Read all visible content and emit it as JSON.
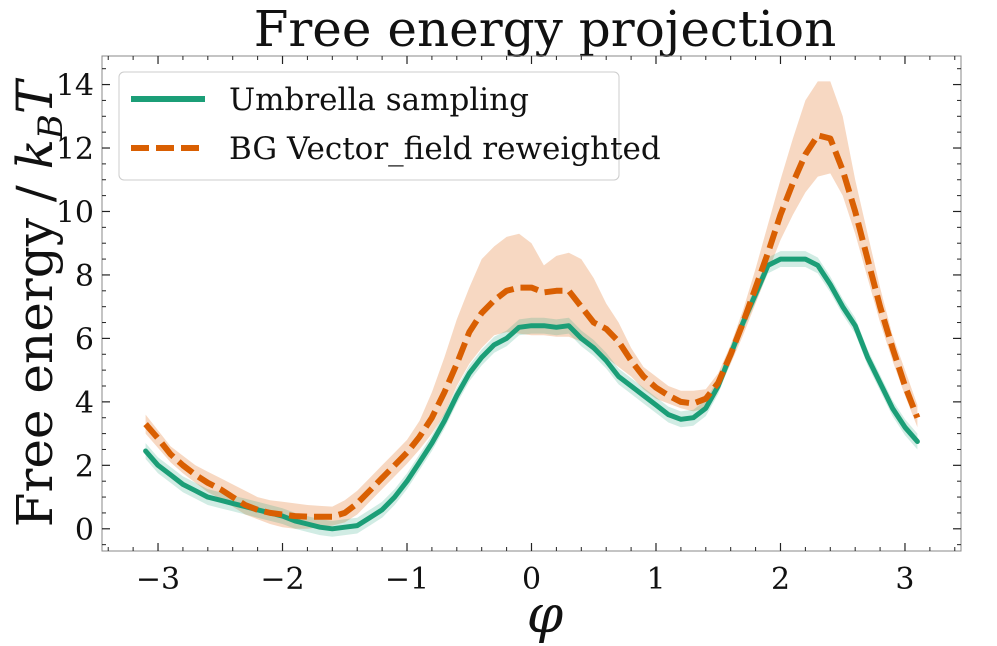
{
  "chart_data": {
    "type": "line",
    "title": "Free energy projection",
    "xlabel": "φ",
    "ylabel": "Free energy / k_B T",
    "ylabel_main": "Free energy / ",
    "ylabel_k": "k",
    "ylabel_sub": "B",
    "ylabel_T": "T",
    "xlim": [
      -3.45,
      3.45
    ],
    "ylim": [
      -0.7,
      14.9
    ],
    "xticks": [
      -3,
      -2,
      -1,
      0,
      1,
      2,
      3
    ],
    "xtick_labels": [
      "−3",
      "−2",
      "−1",
      "0",
      "1",
      "2",
      "3"
    ],
    "yticks": [
      0,
      2,
      4,
      6,
      8,
      10,
      12,
      14
    ],
    "ytick_labels": [
      "0",
      "2",
      "4",
      "6",
      "8",
      "10",
      "12",
      "14"
    ],
    "grid": false,
    "legend_position": "top-left",
    "series": [
      {
        "name": "Umbrella sampling",
        "color": "#1b9e77",
        "style": "solid",
        "x": [
          -3.1,
          -3.0,
          -2.9,
          -2.8,
          -2.7,
          -2.6,
          -2.5,
          -2.4,
          -2.3,
          -2.2,
          -2.1,
          -2.0,
          -1.9,
          -1.8,
          -1.7,
          -1.6,
          -1.5,
          -1.4,
          -1.3,
          -1.2,
          -1.1,
          -1.0,
          -0.9,
          -0.8,
          -0.7,
          -0.6,
          -0.5,
          -0.4,
          -0.3,
          -0.2,
          -0.1,
          0.0,
          0.1,
          0.2,
          0.3,
          0.4,
          0.5,
          0.6,
          0.7,
          0.8,
          0.9,
          1.0,
          1.1,
          1.2,
          1.3,
          1.4,
          1.5,
          1.6,
          1.7,
          1.8,
          1.9,
          2.0,
          2.1,
          2.2,
          2.3,
          2.4,
          2.5,
          2.6,
          2.7,
          2.8,
          2.9,
          3.0,
          3.1
        ],
        "y": [
          2.45,
          2.0,
          1.7,
          1.4,
          1.2,
          1.0,
          0.9,
          0.8,
          0.7,
          0.6,
          0.5,
          0.4,
          0.25,
          0.15,
          0.05,
          0.0,
          0.05,
          0.1,
          0.35,
          0.6,
          1.0,
          1.5,
          2.1,
          2.7,
          3.4,
          4.2,
          4.9,
          5.4,
          5.8,
          6.0,
          6.35,
          6.4,
          6.4,
          6.35,
          6.4,
          6.0,
          5.7,
          5.3,
          4.8,
          4.5,
          4.2,
          3.9,
          3.6,
          3.45,
          3.5,
          3.8,
          4.5,
          5.5,
          6.5,
          7.4,
          8.3,
          8.5,
          8.5,
          8.5,
          8.3,
          7.7,
          7.0,
          6.4,
          5.4,
          4.6,
          3.8,
          3.2,
          2.75
        ],
        "band": 0.25
      },
      {
        "name": "BG Vector_field reweighted",
        "color": "#d95f02",
        "band_color": "#f4cbae",
        "style": "dashed",
        "x": [
          -3.1,
          -3.0,
          -2.9,
          -2.8,
          -2.7,
          -2.6,
          -2.5,
          -2.4,
          -2.3,
          -2.2,
          -2.1,
          -2.0,
          -1.9,
          -1.8,
          -1.7,
          -1.6,
          -1.5,
          -1.4,
          -1.3,
          -1.2,
          -1.1,
          -1.0,
          -0.9,
          -0.8,
          -0.7,
          -0.6,
          -0.5,
          -0.4,
          -0.3,
          -0.2,
          -0.1,
          0.0,
          0.1,
          0.2,
          0.3,
          0.4,
          0.5,
          0.6,
          0.7,
          0.8,
          0.9,
          1.0,
          1.1,
          1.2,
          1.3,
          1.4,
          1.5,
          1.6,
          1.7,
          1.8,
          1.9,
          2.0,
          2.1,
          2.2,
          2.3,
          2.4,
          2.5,
          2.6,
          2.7,
          2.8,
          2.9,
          3.0,
          3.1
        ],
        "y": [
          3.3,
          2.85,
          2.35,
          2.0,
          1.7,
          1.45,
          1.25,
          1.0,
          0.75,
          0.6,
          0.5,
          0.45,
          0.4,
          0.38,
          0.38,
          0.38,
          0.5,
          0.8,
          1.2,
          1.6,
          2.0,
          2.4,
          2.9,
          3.5,
          4.3,
          5.2,
          6.2,
          6.8,
          7.2,
          7.5,
          7.6,
          7.6,
          7.45,
          7.5,
          7.5,
          7.0,
          6.5,
          6.3,
          5.9,
          5.3,
          4.8,
          4.45,
          4.2,
          4.0,
          3.95,
          4.1,
          4.6,
          5.5,
          6.5,
          7.6,
          8.7,
          9.9,
          10.9,
          11.8,
          12.4,
          12.3,
          11.3,
          10.0,
          8.5,
          7.0,
          5.7,
          4.5,
          3.5
        ],
        "y_upper": [
          3.6,
          3.1,
          2.6,
          2.3,
          2.0,
          1.8,
          1.6,
          1.4,
          1.2,
          1.0,
          0.9,
          0.85,
          0.8,
          0.75,
          0.72,
          0.7,
          0.9,
          1.2,
          1.6,
          2.0,
          2.4,
          2.8,
          3.4,
          4.3,
          5.4,
          6.6,
          7.6,
          8.5,
          8.9,
          9.2,
          9.3,
          9.0,
          8.3,
          8.6,
          8.7,
          8.5,
          7.9,
          7.1,
          6.5,
          5.7,
          5.1,
          4.8,
          4.5,
          4.35,
          4.35,
          4.4,
          4.9,
          5.8,
          6.9,
          8.2,
          9.6,
          11.0,
          12.3,
          13.5,
          14.1,
          14.1,
          13.0,
          11.0,
          9.3,
          7.6,
          6.1,
          5.0,
          3.9
        ],
        "y_lower": [
          3.0,
          2.55,
          2.1,
          1.75,
          1.45,
          1.15,
          0.95,
          0.7,
          0.45,
          0.3,
          0.15,
          0.05,
          0.0,
          0.0,
          0.05,
          0.1,
          0.2,
          0.45,
          0.85,
          1.25,
          1.65,
          2.05,
          2.5,
          3.0,
          3.6,
          4.5,
          5.2,
          5.7,
          6.1,
          6.2,
          6.15,
          6.1,
          6.1,
          6.05,
          6.05,
          5.9,
          5.6,
          5.4,
          5.1,
          4.8,
          4.4,
          4.1,
          3.95,
          3.8,
          3.7,
          3.8,
          4.35,
          5.2,
          6.1,
          7.1,
          8.1,
          9.1,
          9.9,
          10.6,
          11.1,
          11.2,
          10.5,
          9.3,
          7.9,
          6.5,
          5.3,
          4.2,
          3.2
        ]
      }
    ]
  }
}
